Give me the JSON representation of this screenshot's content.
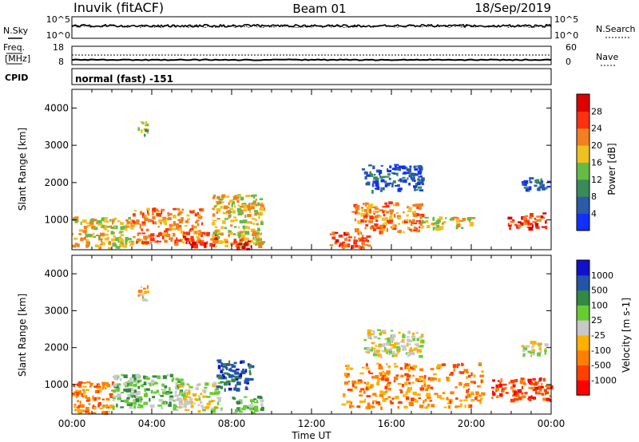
{
  "header": {
    "station": "Inuvik (fitACF)",
    "beam": "Beam 01",
    "date": "18/Sep/2019"
  },
  "top_panel": {
    "left_label": "N.Sky",
    "right_label": "N.Search",
    "left_ticks": [
      "10^5",
      "10^0"
    ],
    "right_ticks": [
      "10^5",
      "10^0"
    ]
  },
  "freq_panel": {
    "left_label_1": "Freq.",
    "left_label_2": "[MHz]",
    "right_label": "Nave",
    "left_ticks": [
      "18",
      "8"
    ],
    "right_ticks": [
      "60",
      "0"
    ]
  },
  "cpid": {
    "label": "CPID",
    "text": "normal (fast) -151"
  },
  "colors": {
    "power": [
      "#1030ff",
      "#2a5aa8",
      "#3a8a5a",
      "#66bb44",
      "#f0c020",
      "#f08020",
      "#ff3010",
      "#dd0000"
    ],
    "velocity": [
      "#ff0000",
      "#ff4000",
      "#ff8000",
      "#ffb000",
      "#c8c8c8",
      "#66cc33",
      "#338844",
      "#2255aa",
      "#1111cc"
    ]
  },
  "chart_data": [
    {
      "type": "heatmap",
      "name": "power",
      "ylabel": "Slant Range [km]",
      "yticks": [
        1000,
        2000,
        3000,
        4000
      ],
      "ylim": [
        200,
        4500
      ],
      "xlim": [
        0,
        24
      ],
      "colorbar_label": "Power [dB]",
      "colorbar_ticks": [
        4,
        8,
        12,
        16,
        20,
        24,
        28
      ],
      "regions": [
        {
          "t": [
            0.0,
            3.0
          ],
          "r": [
            250,
            1100
          ],
          "level": 4
        },
        {
          "t": [
            3.0,
            6.5
          ],
          "r": [
            400,
            1350
          ],
          "level": 5
        },
        {
          "t": [
            5.5,
            7.2
          ],
          "r": [
            300,
            700
          ],
          "level": 6
        },
        {
          "t": [
            7.0,
            9.5
          ],
          "r": [
            300,
            1700
          ],
          "level": 4
        },
        {
          "t": [
            8.0,
            9.0
          ],
          "r": [
            250,
            500
          ],
          "level": 7
        },
        {
          "t": [
            12.8,
            14.8
          ],
          "r": [
            250,
            700
          ],
          "level": 6
        },
        {
          "t": [
            14.0,
            17.5
          ],
          "r": [
            700,
            1500
          ],
          "level": 5
        },
        {
          "t": [
            17.5,
            20.0
          ],
          "r": [
            800,
            1100
          ],
          "level": 4
        },
        {
          "t": [
            21.8,
            23.8
          ],
          "r": [
            800,
            1200
          ],
          "level": 6
        },
        {
          "t": [
            3.3,
            3.8
          ],
          "r": [
            3300,
            3700
          ],
          "level": 3
        },
        {
          "t": [
            14.5,
            17.5
          ],
          "r": [
            1800,
            2500
          ],
          "level": 1
        },
        {
          "t": [
            22.5,
            23.8
          ],
          "r": [
            1800,
            2200
          ],
          "level": 1
        }
      ]
    },
    {
      "type": "heatmap",
      "name": "velocity",
      "ylabel": "Slant Range [km]",
      "yticks": [
        1000,
        2000,
        3000,
        4000
      ],
      "ylim": [
        200,
        4500
      ],
      "xlim": [
        0,
        24
      ],
      "xlabel": "Time UT",
      "xticks": [
        "00:00",
        "04:00",
        "08:00",
        "12:00",
        "16:00",
        "20:00",
        "00:00"
      ],
      "colorbar_label": "Velocity [m s-1]",
      "colorbar_ticks": [
        -1000,
        -500,
        -100,
        -25,
        25,
        100,
        500,
        1000
      ],
      "regions": [
        {
          "t": [
            0.0,
            2.0
          ],
          "r": [
            250,
            1100
          ],
          "level": 2
        },
        {
          "t": [
            2.0,
            5.5
          ],
          "r": [
            400,
            1300
          ],
          "level": 5
        },
        {
          "t": [
            5.0,
            7.5
          ],
          "r": [
            300,
            1100
          ],
          "level": 4
        },
        {
          "t": [
            7.2,
            9.0
          ],
          "r": [
            900,
            1700
          ],
          "level": 7
        },
        {
          "t": [
            8.0,
            9.5
          ],
          "r": [
            250,
            700
          ],
          "level": 5
        },
        {
          "t": [
            13.5,
            20.5
          ],
          "r": [
            400,
            1600
          ],
          "level": 2
        },
        {
          "t": [
            21.0,
            24.0
          ],
          "r": [
            600,
            1200
          ],
          "level": 1
        },
        {
          "t": [
            3.3,
            3.8
          ],
          "r": [
            3300,
            3700
          ],
          "level": 3
        },
        {
          "t": [
            14.5,
            17.5
          ],
          "r": [
            1800,
            2500
          ],
          "level": 4
        },
        {
          "t": [
            22.5,
            23.8
          ],
          "r": [
            1800,
            2200
          ],
          "level": 4
        }
      ]
    }
  ]
}
